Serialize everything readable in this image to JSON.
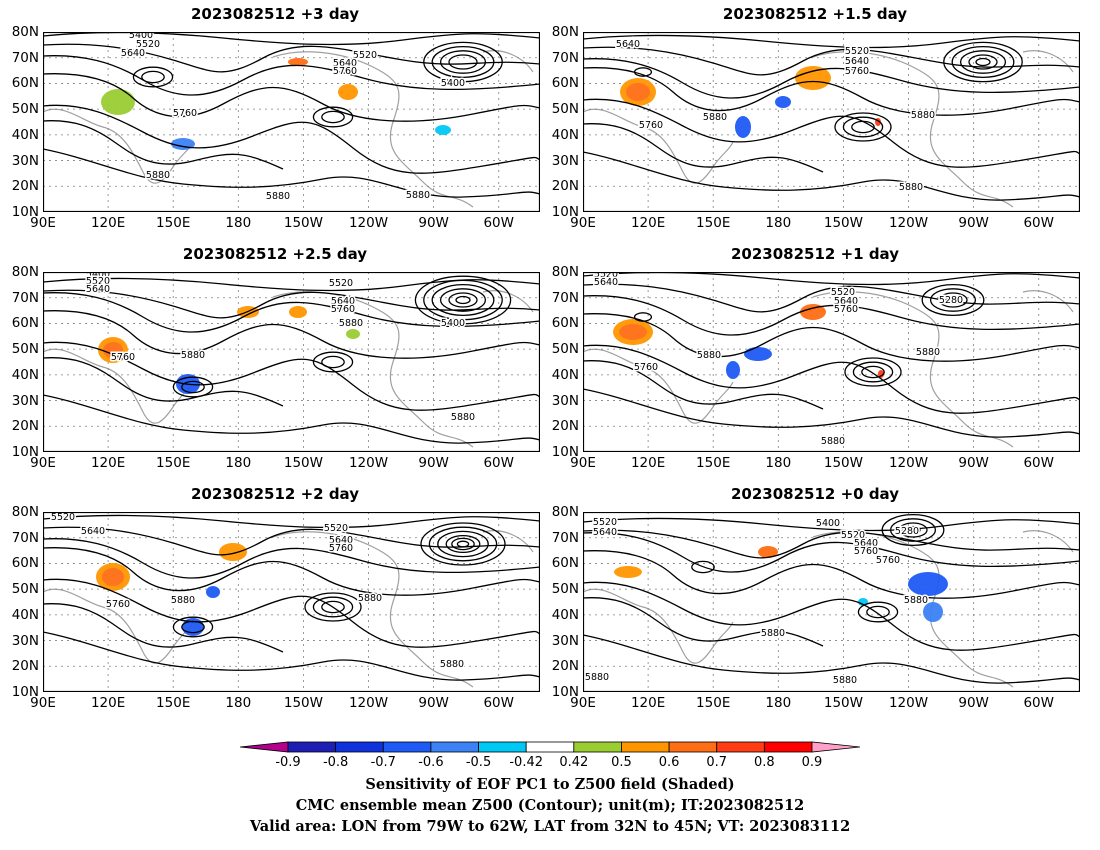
{
  "panels": [
    {
      "title": "2023082512 +3 day",
      "contour_labels": [
        "5400",
        "5520",
        "5640",
        "5760",
        "5880",
        "5880",
        "5880",
        "5520",
        "5640",
        "5760",
        "5400"
      ]
    },
    {
      "title": "2023082512 +1.5 day",
      "contour_labels": [
        "5640",
        "5880",
        "5760",
        "5520",
        "5640",
        "5760",
        "5880",
        "5880"
      ]
    },
    {
      "title": "2023082512 +2.5 day",
      "contour_labels": [
        "5400",
        "5520",
        "5640",
        "5760",
        "5880",
        "5520",
        "5640",
        "5760",
        "5880",
        "5400",
        "5880"
      ]
    },
    {
      "title": "2023082512 +1 day",
      "contour_labels": [
        "5520",
        "5640",
        "5880",
        "5760",
        "5520",
        "5640",
        "5760",
        "5280",
        "5880",
        "5880"
      ]
    },
    {
      "title": "2023082512 +2 day",
      "contour_labels": [
        "5520",
        "5640",
        "5760",
        "5880",
        "5520",
        "5640",
        "5760",
        "5880",
        "5880"
      ]
    },
    {
      "title": "2023082512 +0 day",
      "contour_labels": [
        "5520",
        "5640",
        "5760",
        "5400",
        "5520",
        "5640",
        "5760",
        "5280",
        "5880",
        "5880",
        "5880",
        "5880"
      ]
    }
  ],
  "axes": {
    "lat_labels": [
      "80N",
      "70N",
      "60N",
      "50N",
      "40N",
      "30N",
      "20N",
      "10N"
    ],
    "lon_labels": [
      "90E",
      "120E",
      "150E",
      "180",
      "150W",
      "120W",
      "90W",
      "60W"
    ]
  },
  "colorbar": {
    "labels": [
      "-0.9",
      "-0.8",
      "-0.7",
      "-0.6",
      "-0.5",
      "-0.42",
      "0.42",
      "0.5",
      "0.6",
      "0.7",
      "0.8",
      "0.9"
    ],
    "colors": [
      "#b4008c",
      "#1e1eb4",
      "#0f32dc",
      "#1e5af5",
      "#3c82f5",
      "#00c8f5",
      "#ffffff",
      "#9acd32",
      "#ff9600",
      "#ff6e14",
      "#ff3c14",
      "#ff0000",
      "#ffa0c8"
    ]
  },
  "caption": {
    "line1": "Sensitivity of EOF PC1 to Z500 field (Shaded)",
    "line2": "CMC ensemble mean Z500 (Contour); unit(m); IT:2023082512",
    "line3": "Valid area: LON from 79W to 62W, LAT from 32N to 45N; VT: 2023083112"
  }
}
